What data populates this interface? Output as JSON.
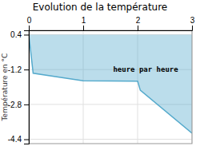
{
  "chart_data": {
    "type": "area",
    "title": "Evolution de la température",
    "y_label": "Température en °C",
    "x": [
      0,
      0.08,
      1.0,
      2.0,
      2.05,
      3.0
    ],
    "values": [
      0.4,
      -1.37,
      -1.72,
      -1.73,
      -2.15,
      -4.12
    ],
    "baseline": 0.4,
    "color": "#55aacc",
    "xlim": [
      0,
      3
    ],
    "xticks": [
      0,
      1,
      2,
      3
    ],
    "ylim": [
      -4.6,
      0.6
    ],
    "yticks": [
      0.4,
      -1.2,
      -2.8,
      -4.4
    ],
    "grid": true,
    "annotations": [
      {
        "text": "heure par heure",
        "x": 1.55,
        "y": -1.05
      }
    ]
  }
}
